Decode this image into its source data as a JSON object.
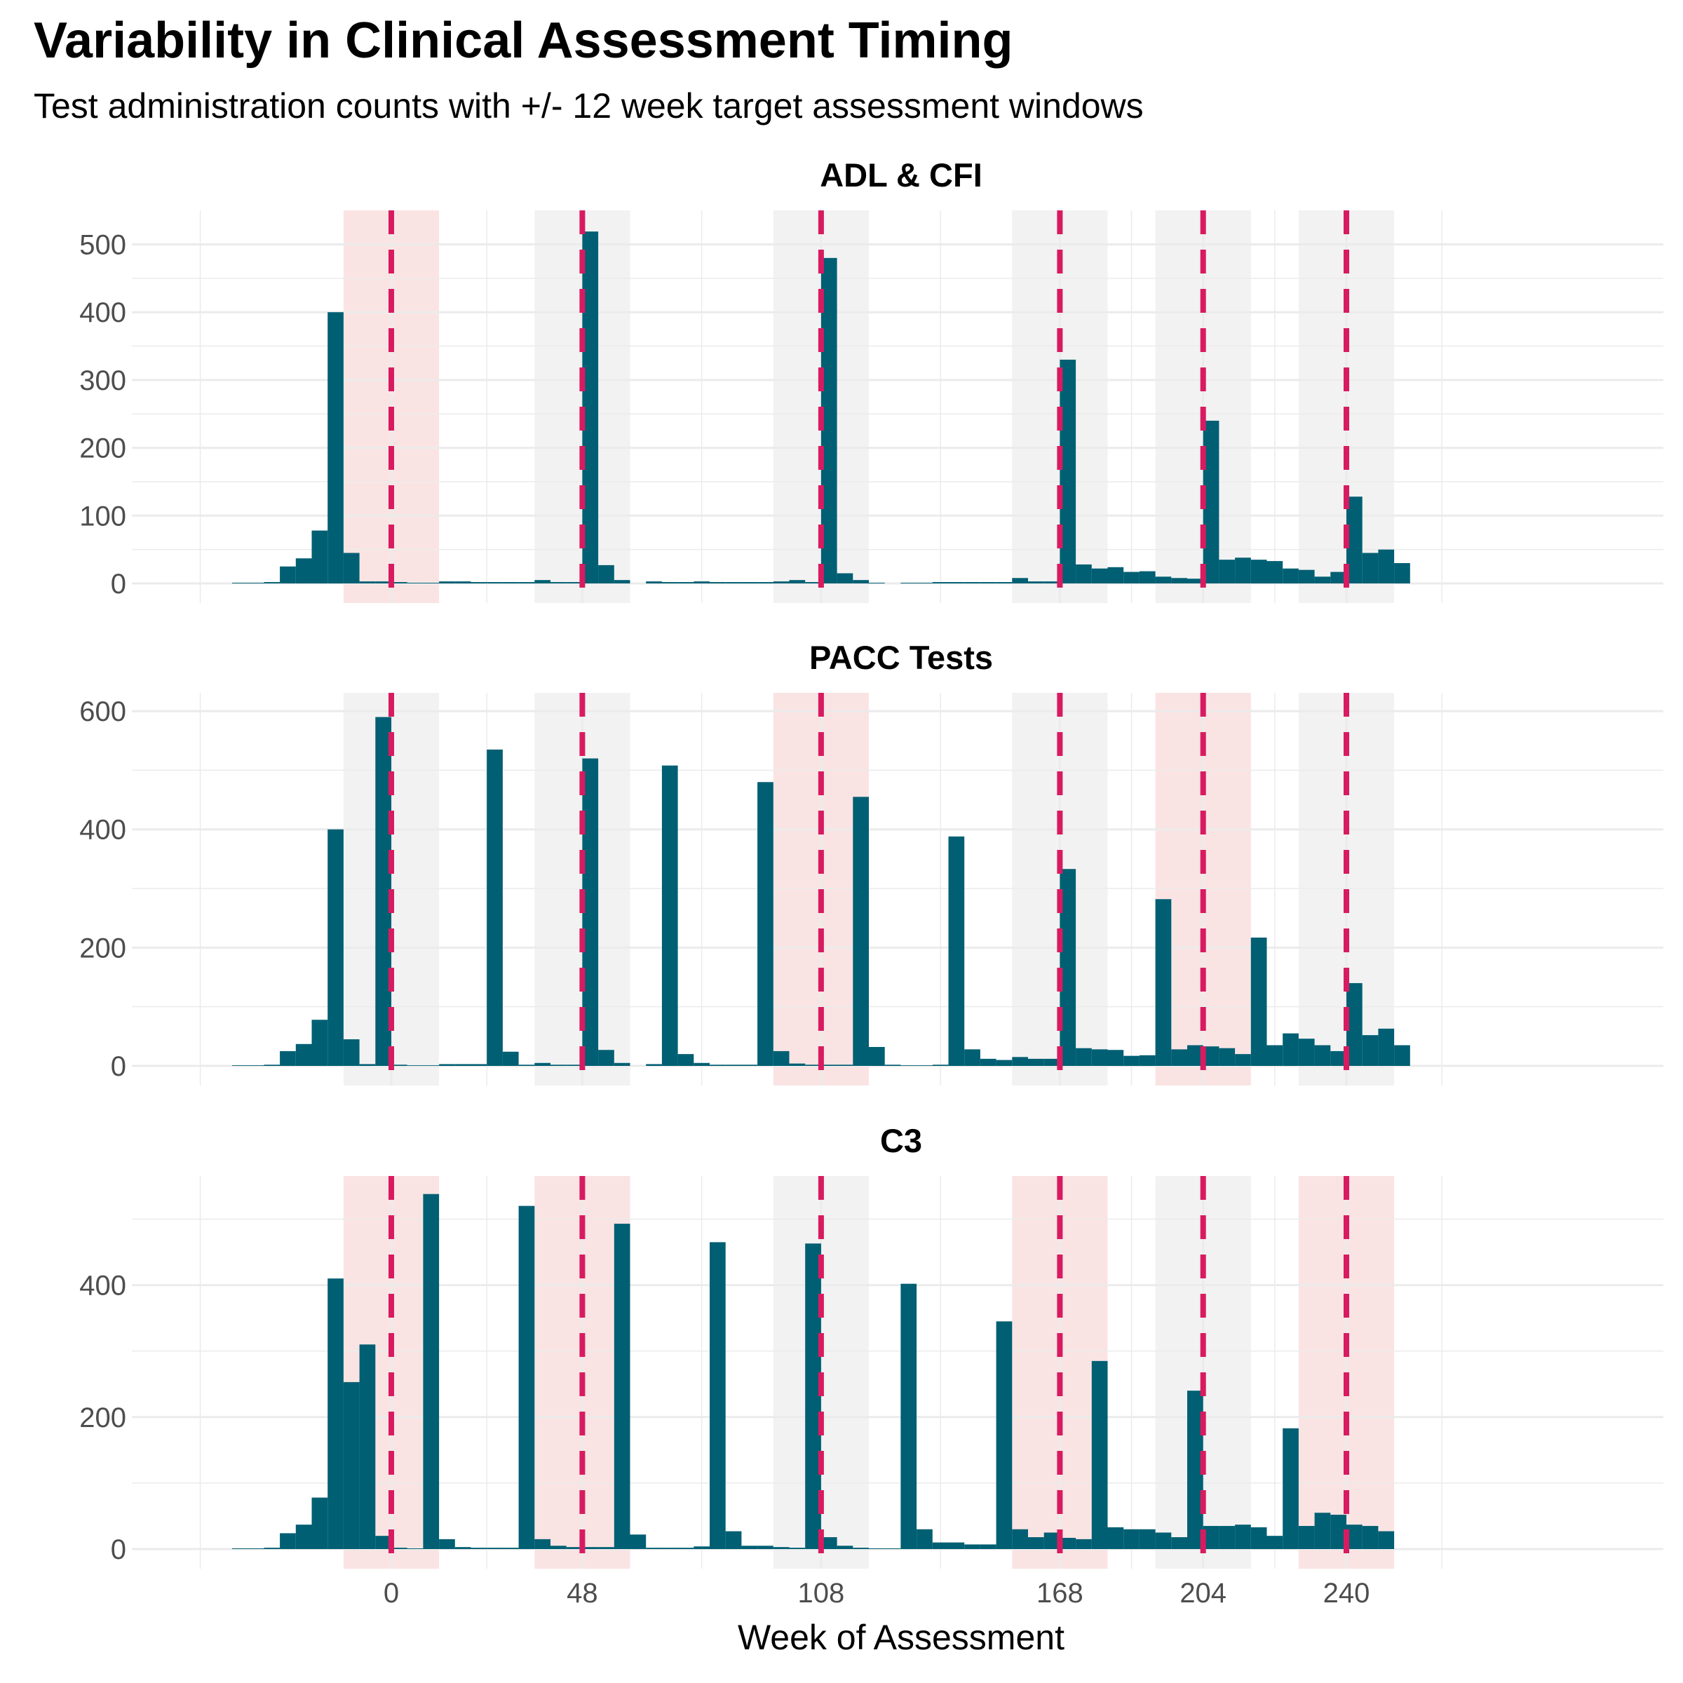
{
  "chart_data": {
    "type": "bar",
    "title": "Variability in Clinical Assessment Timing",
    "subtitle": "Test administration counts with +/- 12 week target assessment windows",
    "xlabel": "Week of Assessment",
    "ylabel": "",
    "x_ticks": [
      0,
      48,
      108,
      168,
      204,
      240
    ],
    "xlim": [
      -48,
      264
    ],
    "bin_width": 4,
    "colors": {
      "bar": "#005f73",
      "target_line": "#d81b60",
      "window_pink": "#fae4e3",
      "window_gray": "#f2f2f2",
      "grid": "#ebebeb"
    },
    "grid": true,
    "legend": "none",
    "panels": [
      {
        "name": "ADL & CFI",
        "ylim": [
          0,
          545
        ],
        "y_ticks": [
          0,
          100,
          200,
          300,
          400,
          500
        ],
        "windows": [
          {
            "center": 0,
            "color": "pink"
          },
          {
            "center": 48,
            "color": "gray"
          },
          {
            "center": 108,
            "color": "gray"
          },
          {
            "center": 168,
            "color": "gray"
          },
          {
            "center": 204,
            "color": "gray"
          },
          {
            "center": 240,
            "color": "gray"
          }
        ],
        "bins": [
          [
            -40,
            1
          ],
          [
            -36,
            1
          ],
          [
            -32,
            2
          ],
          [
            -28,
            25
          ],
          [
            -24,
            37
          ],
          [
            -20,
            78
          ],
          [
            -16,
            400
          ],
          [
            -12,
            45
          ],
          [
            -8,
            3
          ],
          [
            -4,
            3
          ],
          [
            0,
            2
          ],
          [
            4,
            1
          ],
          [
            8,
            1
          ],
          [
            12,
            3
          ],
          [
            16,
            3
          ],
          [
            20,
            2
          ],
          [
            24,
            2
          ],
          [
            28,
            2
          ],
          [
            32,
            2
          ],
          [
            36,
            5
          ],
          [
            40,
            2
          ],
          [
            44,
            2
          ],
          [
            48,
            519
          ],
          [
            52,
            27
          ],
          [
            56,
            5
          ],
          [
            64,
            3
          ],
          [
            68,
            2
          ],
          [
            72,
            2
          ],
          [
            76,
            3
          ],
          [
            80,
            2
          ],
          [
            84,
            2
          ],
          [
            88,
            2
          ],
          [
            92,
            2
          ],
          [
            96,
            3
          ],
          [
            100,
            5
          ],
          [
            104,
            2
          ],
          [
            108,
            480
          ],
          [
            112,
            15
          ],
          [
            116,
            5
          ],
          [
            120,
            1
          ],
          [
            128,
            1
          ],
          [
            132,
            1
          ],
          [
            136,
            2
          ],
          [
            140,
            2
          ],
          [
            144,
            2
          ],
          [
            148,
            2
          ],
          [
            152,
            2
          ],
          [
            156,
            8
          ],
          [
            160,
            3
          ],
          [
            164,
            3
          ],
          [
            168,
            330
          ],
          [
            172,
            28
          ],
          [
            176,
            22
          ],
          [
            180,
            24
          ],
          [
            184,
            17
          ],
          [
            188,
            18
          ],
          [
            192,
            10
          ],
          [
            196,
            8
          ],
          [
            200,
            7
          ],
          [
            204,
            240
          ],
          [
            208,
            35
          ],
          [
            212,
            38
          ],
          [
            216,
            35
          ],
          [
            220,
            33
          ],
          [
            224,
            22
          ],
          [
            228,
            20
          ],
          [
            232,
            10
          ],
          [
            236,
            17
          ],
          [
            240,
            128
          ],
          [
            244,
            45
          ],
          [
            248,
            50
          ],
          [
            252,
            30
          ]
        ]
      },
      {
        "name": "PACC Tests",
        "ylim": [
          0,
          625
        ],
        "y_ticks": [
          0,
          200,
          400,
          600
        ],
        "windows": [
          {
            "center": 0,
            "color": "gray"
          },
          {
            "center": 48,
            "color": "gray"
          },
          {
            "center": 108,
            "color": "pink"
          },
          {
            "center": 168,
            "color": "gray"
          },
          {
            "center": 204,
            "color": "pink"
          },
          {
            "center": 240,
            "color": "gray"
          }
        ],
        "bins": [
          [
            -40,
            1
          ],
          [
            -36,
            1
          ],
          [
            -32,
            2
          ],
          [
            -28,
            25
          ],
          [
            -24,
            37
          ],
          [
            -20,
            78
          ],
          [
            -16,
            400
          ],
          [
            -12,
            45
          ],
          [
            -8,
            3
          ],
          [
            -4,
            590
          ],
          [
            0,
            2
          ],
          [
            4,
            1
          ],
          [
            8,
            1
          ],
          [
            12,
            3
          ],
          [
            16,
            3
          ],
          [
            20,
            3
          ],
          [
            24,
            535
          ],
          [
            28,
            24
          ],
          [
            32,
            2
          ],
          [
            36,
            5
          ],
          [
            40,
            2
          ],
          [
            44,
            2
          ],
          [
            48,
            520
          ],
          [
            52,
            27
          ],
          [
            56,
            5
          ],
          [
            64,
            3
          ],
          [
            68,
            508
          ],
          [
            72,
            20
          ],
          [
            76,
            5
          ],
          [
            80,
            2
          ],
          [
            84,
            2
          ],
          [
            88,
            2
          ],
          [
            92,
            480
          ],
          [
            96,
            25
          ],
          [
            100,
            4
          ],
          [
            104,
            2
          ],
          [
            108,
            2
          ],
          [
            112,
            2
          ],
          [
            116,
            455
          ],
          [
            120,
            32
          ],
          [
            124,
            2
          ],
          [
            128,
            1
          ],
          [
            132,
            1
          ],
          [
            136,
            2
          ],
          [
            140,
            388
          ],
          [
            144,
            28
          ],
          [
            148,
            12
          ],
          [
            152,
            10
          ],
          [
            156,
            15
          ],
          [
            160,
            12
          ],
          [
            164,
            12
          ],
          [
            168,
            333
          ],
          [
            172,
            30
          ],
          [
            176,
            28
          ],
          [
            180,
            27
          ],
          [
            184,
            17
          ],
          [
            188,
            18
          ],
          [
            192,
            282
          ],
          [
            196,
            28
          ],
          [
            200,
            35
          ],
          [
            204,
            33
          ],
          [
            208,
            30
          ],
          [
            212,
            20
          ],
          [
            216,
            217
          ],
          [
            220,
            35
          ],
          [
            224,
            55
          ],
          [
            228,
            46
          ],
          [
            232,
            35
          ],
          [
            236,
            25
          ],
          [
            240,
            140
          ],
          [
            244,
            52
          ],
          [
            248,
            63
          ],
          [
            252,
            35
          ]
        ]
      },
      {
        "name": "C3",
        "ylim": [
          0,
          560
        ],
        "y_ticks": [
          0,
          200,
          400
        ],
        "windows": [
          {
            "center": 0,
            "color": "pink"
          },
          {
            "center": 48,
            "color": "pink"
          },
          {
            "center": 108,
            "color": "gray"
          },
          {
            "center": 168,
            "color": "pink"
          },
          {
            "center": 204,
            "color": "gray"
          },
          {
            "center": 240,
            "color": "pink"
          }
        ],
        "bins": [
          [
            -40,
            1
          ],
          [
            -36,
            1
          ],
          [
            -32,
            2
          ],
          [
            -28,
            24
          ],
          [
            -24,
            37
          ],
          [
            -20,
            78
          ],
          [
            -16,
            410
          ],
          [
            -12,
            253
          ],
          [
            -8,
            310
          ],
          [
            -4,
            20
          ],
          [
            0,
            2
          ],
          [
            4,
            1
          ],
          [
            8,
            538
          ],
          [
            12,
            15
          ],
          [
            16,
            3
          ],
          [
            20,
            2
          ],
          [
            24,
            2
          ],
          [
            28,
            2
          ],
          [
            32,
            520
          ],
          [
            36,
            15
          ],
          [
            40,
            5
          ],
          [
            44,
            3
          ],
          [
            48,
            3
          ],
          [
            52,
            3
          ],
          [
            56,
            493
          ],
          [
            60,
            22
          ],
          [
            64,
            2
          ],
          [
            68,
            2
          ],
          [
            72,
            2
          ],
          [
            76,
            4
          ],
          [
            80,
            465
          ],
          [
            84,
            27
          ],
          [
            88,
            5
          ],
          [
            92,
            5
          ],
          [
            96,
            3
          ],
          [
            100,
            2
          ],
          [
            104,
            463
          ],
          [
            108,
            18
          ],
          [
            112,
            5
          ],
          [
            116,
            2
          ],
          [
            120,
            1
          ],
          [
            124,
            1
          ],
          [
            128,
            402
          ],
          [
            132,
            30
          ],
          [
            136,
            10
          ],
          [
            140,
            10
          ],
          [
            144,
            7
          ],
          [
            148,
            7
          ],
          [
            152,
            345
          ],
          [
            156,
            30
          ],
          [
            160,
            18
          ],
          [
            164,
            25
          ],
          [
            168,
            17
          ],
          [
            172,
            15
          ],
          [
            176,
            285
          ],
          [
            180,
            33
          ],
          [
            184,
            30
          ],
          [
            188,
            30
          ],
          [
            192,
            25
          ],
          [
            196,
            18
          ],
          [
            200,
            240
          ],
          [
            204,
            35
          ],
          [
            208,
            35
          ],
          [
            212,
            37
          ],
          [
            216,
            33
          ],
          [
            220,
            20
          ],
          [
            224,
            183
          ],
          [
            228,
            35
          ],
          [
            232,
            55
          ],
          [
            236,
            52
          ],
          [
            240,
            37
          ],
          [
            244,
            35
          ],
          [
            248,
            27
          ]
        ]
      }
    ]
  }
}
